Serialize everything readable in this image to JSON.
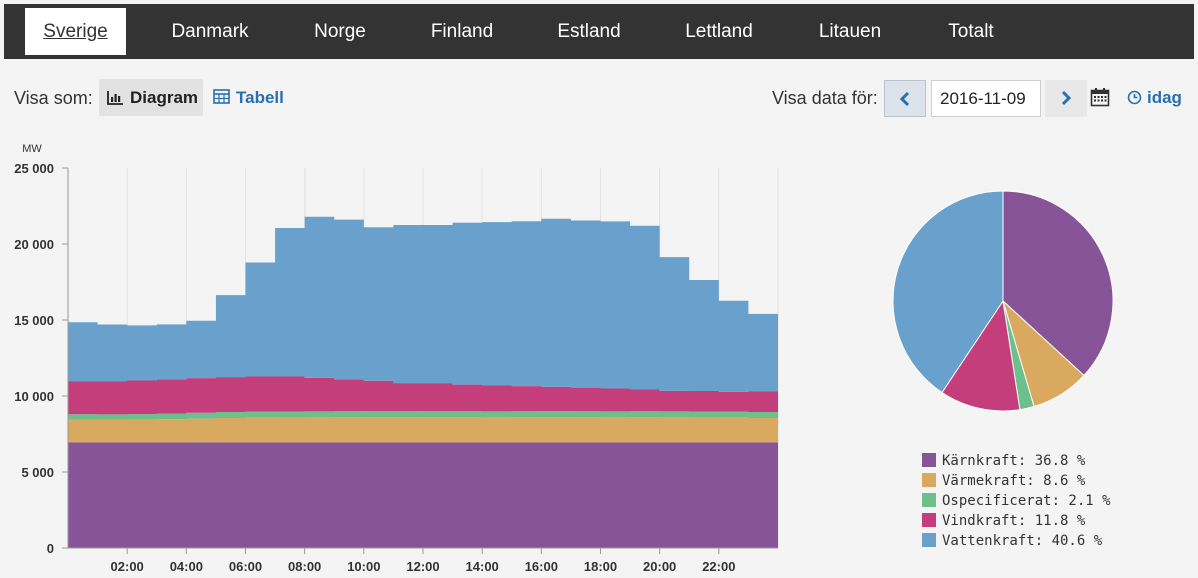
{
  "tabs": [
    {
      "label": "Sverige",
      "active": true
    },
    {
      "label": "Danmark",
      "active": false
    },
    {
      "label": "Norge",
      "active": false
    },
    {
      "label": "Finland",
      "active": false
    },
    {
      "label": "Estland",
      "active": false
    },
    {
      "label": "Lettland",
      "active": false
    },
    {
      "label": "Litauen",
      "active": false
    },
    {
      "label": "Totalt",
      "active": false
    }
  ],
  "view": {
    "label": "Visa som:",
    "diagram_label": "Diagram",
    "table_label": "Tabell",
    "diagram_icon": "bar-chart-icon",
    "table_icon": "table-icon"
  },
  "date_picker": {
    "label": "Visa data för:",
    "value": "2016-11-09",
    "prev_icon": "chevron-left-icon",
    "next_icon": "chevron-right-icon",
    "calendar_icon": "calendar-icon",
    "today_label": "idag",
    "today_icon": "clock-icon"
  },
  "chart_data": [
    {
      "type": "area",
      "stacked": true,
      "ylabel": "MW",
      "ylim": [
        0,
        25000
      ],
      "yticks": [
        0,
        5000,
        10000,
        15000,
        20000,
        25000
      ],
      "ytick_labels": [
        "0",
        "5 000",
        "10 000",
        "15 000",
        "20 000",
        "25 000"
      ],
      "xlim": [
        0,
        24
      ],
      "xticks": [
        2,
        4,
        6,
        8,
        10,
        12,
        14,
        16,
        18,
        20,
        22
      ],
      "xtick_labels": [
        "02:00",
        "04:00",
        "06:00",
        "08:00",
        "10:00",
        "12:00",
        "14:00",
        "16:00",
        "18:00",
        "20:00",
        "22:00"
      ],
      "grid": "vertical",
      "x": [
        0,
        1,
        2,
        3,
        4,
        5,
        6,
        7,
        8,
        9,
        10,
        11,
        12,
        13,
        14,
        15,
        16,
        17,
        18,
        19,
        20,
        21,
        22,
        23,
        24
      ],
      "series": [
        {
          "name": "Kärnkraft",
          "color": "#875498",
          "values": [
            6950,
            6950,
            6950,
            6950,
            6950,
            6950,
            6950,
            6950,
            6950,
            6950,
            6950,
            6950,
            6950,
            6950,
            6950,
            6950,
            6950,
            6950,
            6950,
            6950,
            6950,
            6950,
            6950,
            6950,
            6950
          ]
        },
        {
          "name": "Värmekraft",
          "color": "#d9a960",
          "values": [
            1500,
            1480,
            1490,
            1520,
            1560,
            1600,
            1620,
            1630,
            1640,
            1650,
            1650,
            1650,
            1650,
            1650,
            1640,
            1650,
            1660,
            1650,
            1640,
            1650,
            1640,
            1630,
            1620,
            1600,
            1600
          ]
        },
        {
          "name": "Ospecificerat",
          "color": "#6cc08b",
          "values": [
            350,
            360,
            370,
            380,
            390,
            400,
            400,
            400,
            400,
            400,
            400,
            400,
            400,
            400,
            400,
            400,
            400,
            400,
            400,
            400,
            400,
            400,
            400,
            400,
            400
          ]
        },
        {
          "name": "Vindkraft",
          "color": "#c33e7a",
          "values": [
            2180,
            2190,
            2210,
            2240,
            2280,
            2290,
            2310,
            2300,
            2200,
            2100,
            2000,
            1850,
            1850,
            1750,
            1700,
            1650,
            1600,
            1550,
            1500,
            1450,
            1350,
            1350,
            1300,
            1350,
            1350
          ]
        },
        {
          "name": "Vattenkraft",
          "color": "#69a1cc",
          "values": [
            3870,
            3720,
            3630,
            3620,
            3770,
            5400,
            7500,
            9770,
            10600,
            10500,
            10100,
            10400,
            10400,
            10650,
            10750,
            10850,
            11050,
            11000,
            11000,
            10750,
            8800,
            7300,
            6000,
            5100,
            5100
          ]
        }
      ]
    },
    {
      "type": "pie",
      "slices": [
        {
          "name": "Kärnkraft",
          "value": 36.8,
          "label": "Kärnkraft: 36.8 %",
          "color": "#875498"
        },
        {
          "name": "Värmekraft",
          "value": 8.6,
          "label": "Värmekraft: 8.6 %",
          "color": "#d9a960"
        },
        {
          "name": "Ospecificerat",
          "value": 2.1,
          "label": "Ospecificerat: 2.1 %",
          "color": "#6cc08b"
        },
        {
          "name": "Vindkraft",
          "value": 11.8,
          "label": "Vindkraft: 11.8 %",
          "color": "#c33e7a"
        },
        {
          "name": "Vattenkraft",
          "value": 40.6,
          "label": "Vattenkraft: 40.6 %",
          "color": "#69a1cc"
        }
      ],
      "legend": "bottom"
    }
  ]
}
